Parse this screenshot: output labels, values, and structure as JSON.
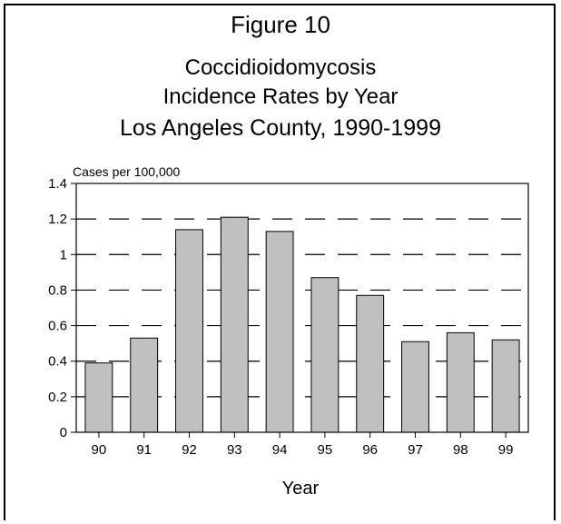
{
  "figure_label": "Figure 10",
  "chart_data": {
    "type": "bar",
    "title_lines": [
      "Coccidioidomycosis",
      "Incidence Rates by Year",
      "Los Angeles County, 1990-1999"
    ],
    "ylabel": "Cases per 100,000",
    "xlabel": "Year",
    "categories": [
      "90",
      "91",
      "92",
      "93",
      "94",
      "95",
      "96",
      "97",
      "98",
      "99"
    ],
    "values": [
      0.39,
      0.53,
      1.14,
      1.21,
      1.13,
      0.87,
      0.77,
      0.51,
      0.56,
      0.52
    ],
    "ylim": [
      0,
      1.4
    ],
    "yticks": [
      "0",
      "0.2",
      "0.4",
      "0.6",
      "0.8",
      "1",
      "1.2",
      "1.4"
    ],
    "ytick_values": [
      0,
      0.2,
      0.4,
      0.6,
      0.8,
      1.0,
      1.2,
      1.4
    ],
    "grid": "dashed horizontal",
    "colors": {
      "bar_fill": "#c0c0c0",
      "bar_stroke": "#000000"
    }
  }
}
